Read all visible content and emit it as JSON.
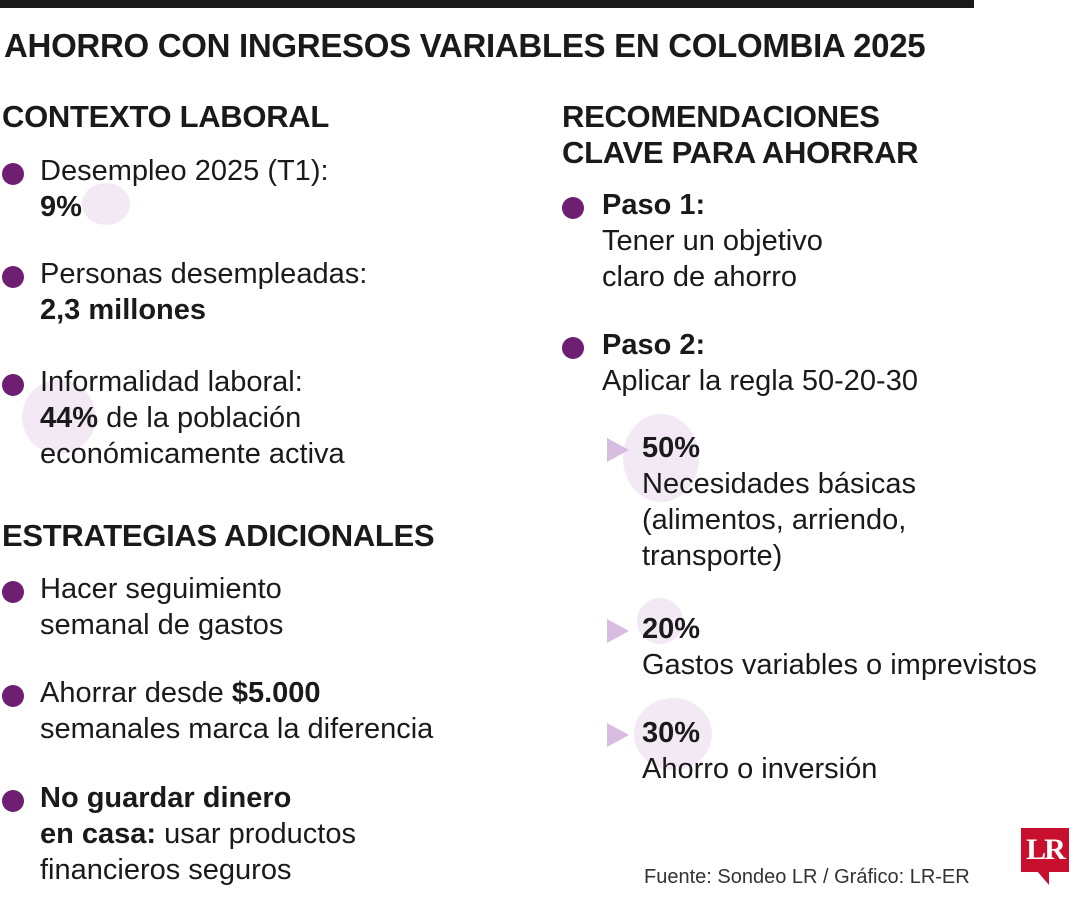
{
  "title": "AHORRO CON INGRESOS VARIABLES EN COLOMBIA 2025",
  "contexto": {
    "heading": "CONTEXTO LABORAL",
    "items": [
      {
        "line1": "Desempleo 2025 (T1):",
        "bold": "9%"
      },
      {
        "line1": "Personas desempleadas:",
        "bold": "2,3 millones"
      },
      {
        "line1": "Informalidad laboral:",
        "bold": "44%",
        "rest": " de la población",
        "line3": "económicamente activa"
      }
    ]
  },
  "estrategias": {
    "heading": "ESTRATEGIAS ADICIONALES",
    "items": [
      {
        "line1": "Hacer seguimiento",
        "line2": "semanal de gastos"
      },
      {
        "pre": "Ahorrar desde ",
        "bold": "$5.000",
        "line2": "semanales marca la diferencia"
      },
      {
        "bold1": "No guardar dinero",
        "bold2": "en casa:",
        "rest": " usar productos",
        "line3": "financieros seguros"
      }
    ]
  },
  "recomendaciones": {
    "heading_line1": "RECOMENDACIONES",
    "heading_line2": "CLAVE PARA AHORRAR",
    "steps": [
      {
        "label": "Paso 1:",
        "line1": "Tener un objetivo",
        "line2": "claro de ahorro"
      },
      {
        "label": "Paso 2:",
        "line1": "Aplicar la regla 50-20-30"
      }
    ],
    "rule": [
      {
        "pct": "50%",
        "line1": "Necesidades básicas",
        "line2": "(alimentos, arriendo,",
        "line3": "transporte)"
      },
      {
        "pct": "20%",
        "line1": "Gastos variables o imprevistos"
      },
      {
        "pct": "30%",
        "line1": "Ahorro o inversión"
      }
    ]
  },
  "source": "Fuente: Sondeo LR / Gráfico: LR-ER",
  "logo_text": "LR",
  "colors": {
    "bullet": "#6e1f72",
    "triangle": "#d9bde0",
    "accent_glow": "#f3e9f5",
    "logo": "#c8102e"
  }
}
